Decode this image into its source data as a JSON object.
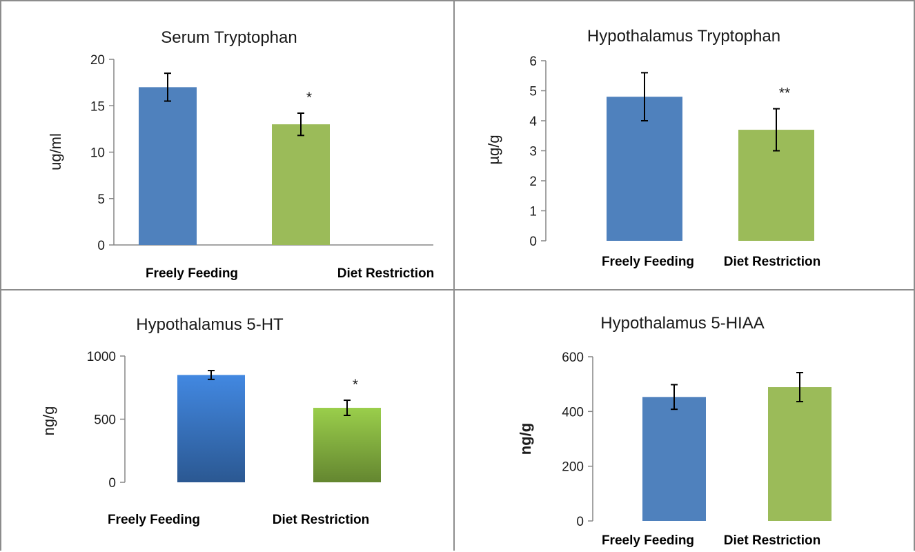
{
  "chart_data": [
    {
      "type": "bar",
      "title": "Serum  Tryptophan",
      "ylabel": "ug/ml",
      "categories": [
        "Freely Feeding",
        "Diet Restriction"
      ],
      "values": [
        17.0,
        13.0
      ],
      "errors": [
        1.5,
        1.2
      ],
      "significance": [
        "",
        "*"
      ],
      "ylim": [
        0,
        20
      ],
      "yticks": [
        "0",
        "5",
        "10",
        "15",
        "20"
      ],
      "colors": [
        "#4f81bd",
        "#9bbb59"
      ]
    },
    {
      "type": "bar",
      "title": "Hypothalamus Tryptophan",
      "ylabel": "µg/g",
      "categories": [
        "Freely Feeding",
        "Diet Restriction"
      ],
      "values": [
        4.8,
        3.7
      ],
      "errors": [
        0.8,
        0.7
      ],
      "significance": [
        "",
        "**"
      ],
      "ylim": [
        0,
        6
      ],
      "yticks": [
        "0",
        "1",
        "2",
        "3",
        "4",
        "5",
        "6"
      ],
      "colors": [
        "#4f81bd",
        "#9bbb59"
      ]
    },
    {
      "type": "bar",
      "title": "Hypothalamus 5-HT",
      "ylabel": "ng/g",
      "categories": [
        "Freely Feeding",
        "Diet Restriction"
      ],
      "values": [
        850,
        590
      ],
      "errors": [
        35,
        60
      ],
      "significance": [
        "",
        "*"
      ],
      "ylim": [
        0,
        1000
      ],
      "yticks": [
        "0",
        "500",
        "1000"
      ],
      "colors": [
        "#3d7ed0",
        "#8fbf45"
      ]
    },
    {
      "type": "bar",
      "title": "Hypothalamus 5-HIAA",
      "ylabel": "ng/g",
      "categories": [
        "Freely Feeding",
        "Diet Restriction"
      ],
      "values": [
        453,
        489
      ],
      "errors": [
        45,
        53
      ],
      "significance": [
        "",
        ""
      ],
      "ylim": [
        0,
        600
      ],
      "yticks": [
        "0",
        "200",
        "400",
        "600"
      ],
      "colors": [
        "#4f81bd",
        "#9bbb59"
      ]
    }
  ]
}
